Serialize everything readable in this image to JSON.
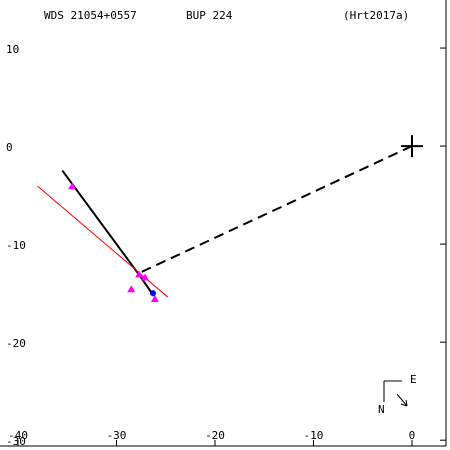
{
  "chart_data": {
    "type": "scatter",
    "title": "WDS 21054+0557",
    "subtitle": "BUP 224",
    "reference": "(Hrt2017a)",
    "xlim": [
      -41.83,
      3.86
    ],
    "ylim": [
      -31.0,
      14.9
    ],
    "xticks": [
      -40,
      -30,
      -20,
      -10,
      0
    ],
    "yticks": [
      10,
      0,
      -10,
      -20,
      -30
    ],
    "series": [
      {
        "style": "solid-line",
        "color": "#000000",
        "x": [
          -35.5,
          -27.8,
          -26.2
        ],
        "values": [
          -2.5,
          -13.0,
          -15.3
        ]
      },
      {
        "style": "thin-line",
        "color": "#ff0000",
        "x": [
          -38.0,
          -24.8
        ],
        "values": [
          -4.1,
          -15.4
        ]
      },
      {
        "style": "dashed-line",
        "color": "#000000",
        "x": [
          0,
          -27.8
        ],
        "values": [
          0,
          -13.0
        ]
      },
      {
        "style": "triangle",
        "color": "#ff00ff",
        "x": [
          -34.5,
          -27.7,
          -27.1,
          -28.5,
          -26.1
        ],
        "values": [
          -4.1,
          -13.1,
          -13.4,
          -14.6,
          -15.6
        ]
      },
      {
        "style": "dot",
        "color": "#0000ff",
        "x": [
          -26.3
        ],
        "values": [
          -15.0
        ]
      },
      {
        "style": "plus",
        "color": "#000000",
        "x": [
          0
        ],
        "values": [
          0
        ]
      }
    ],
    "compass": {
      "east": "E",
      "north": "N"
    }
  }
}
